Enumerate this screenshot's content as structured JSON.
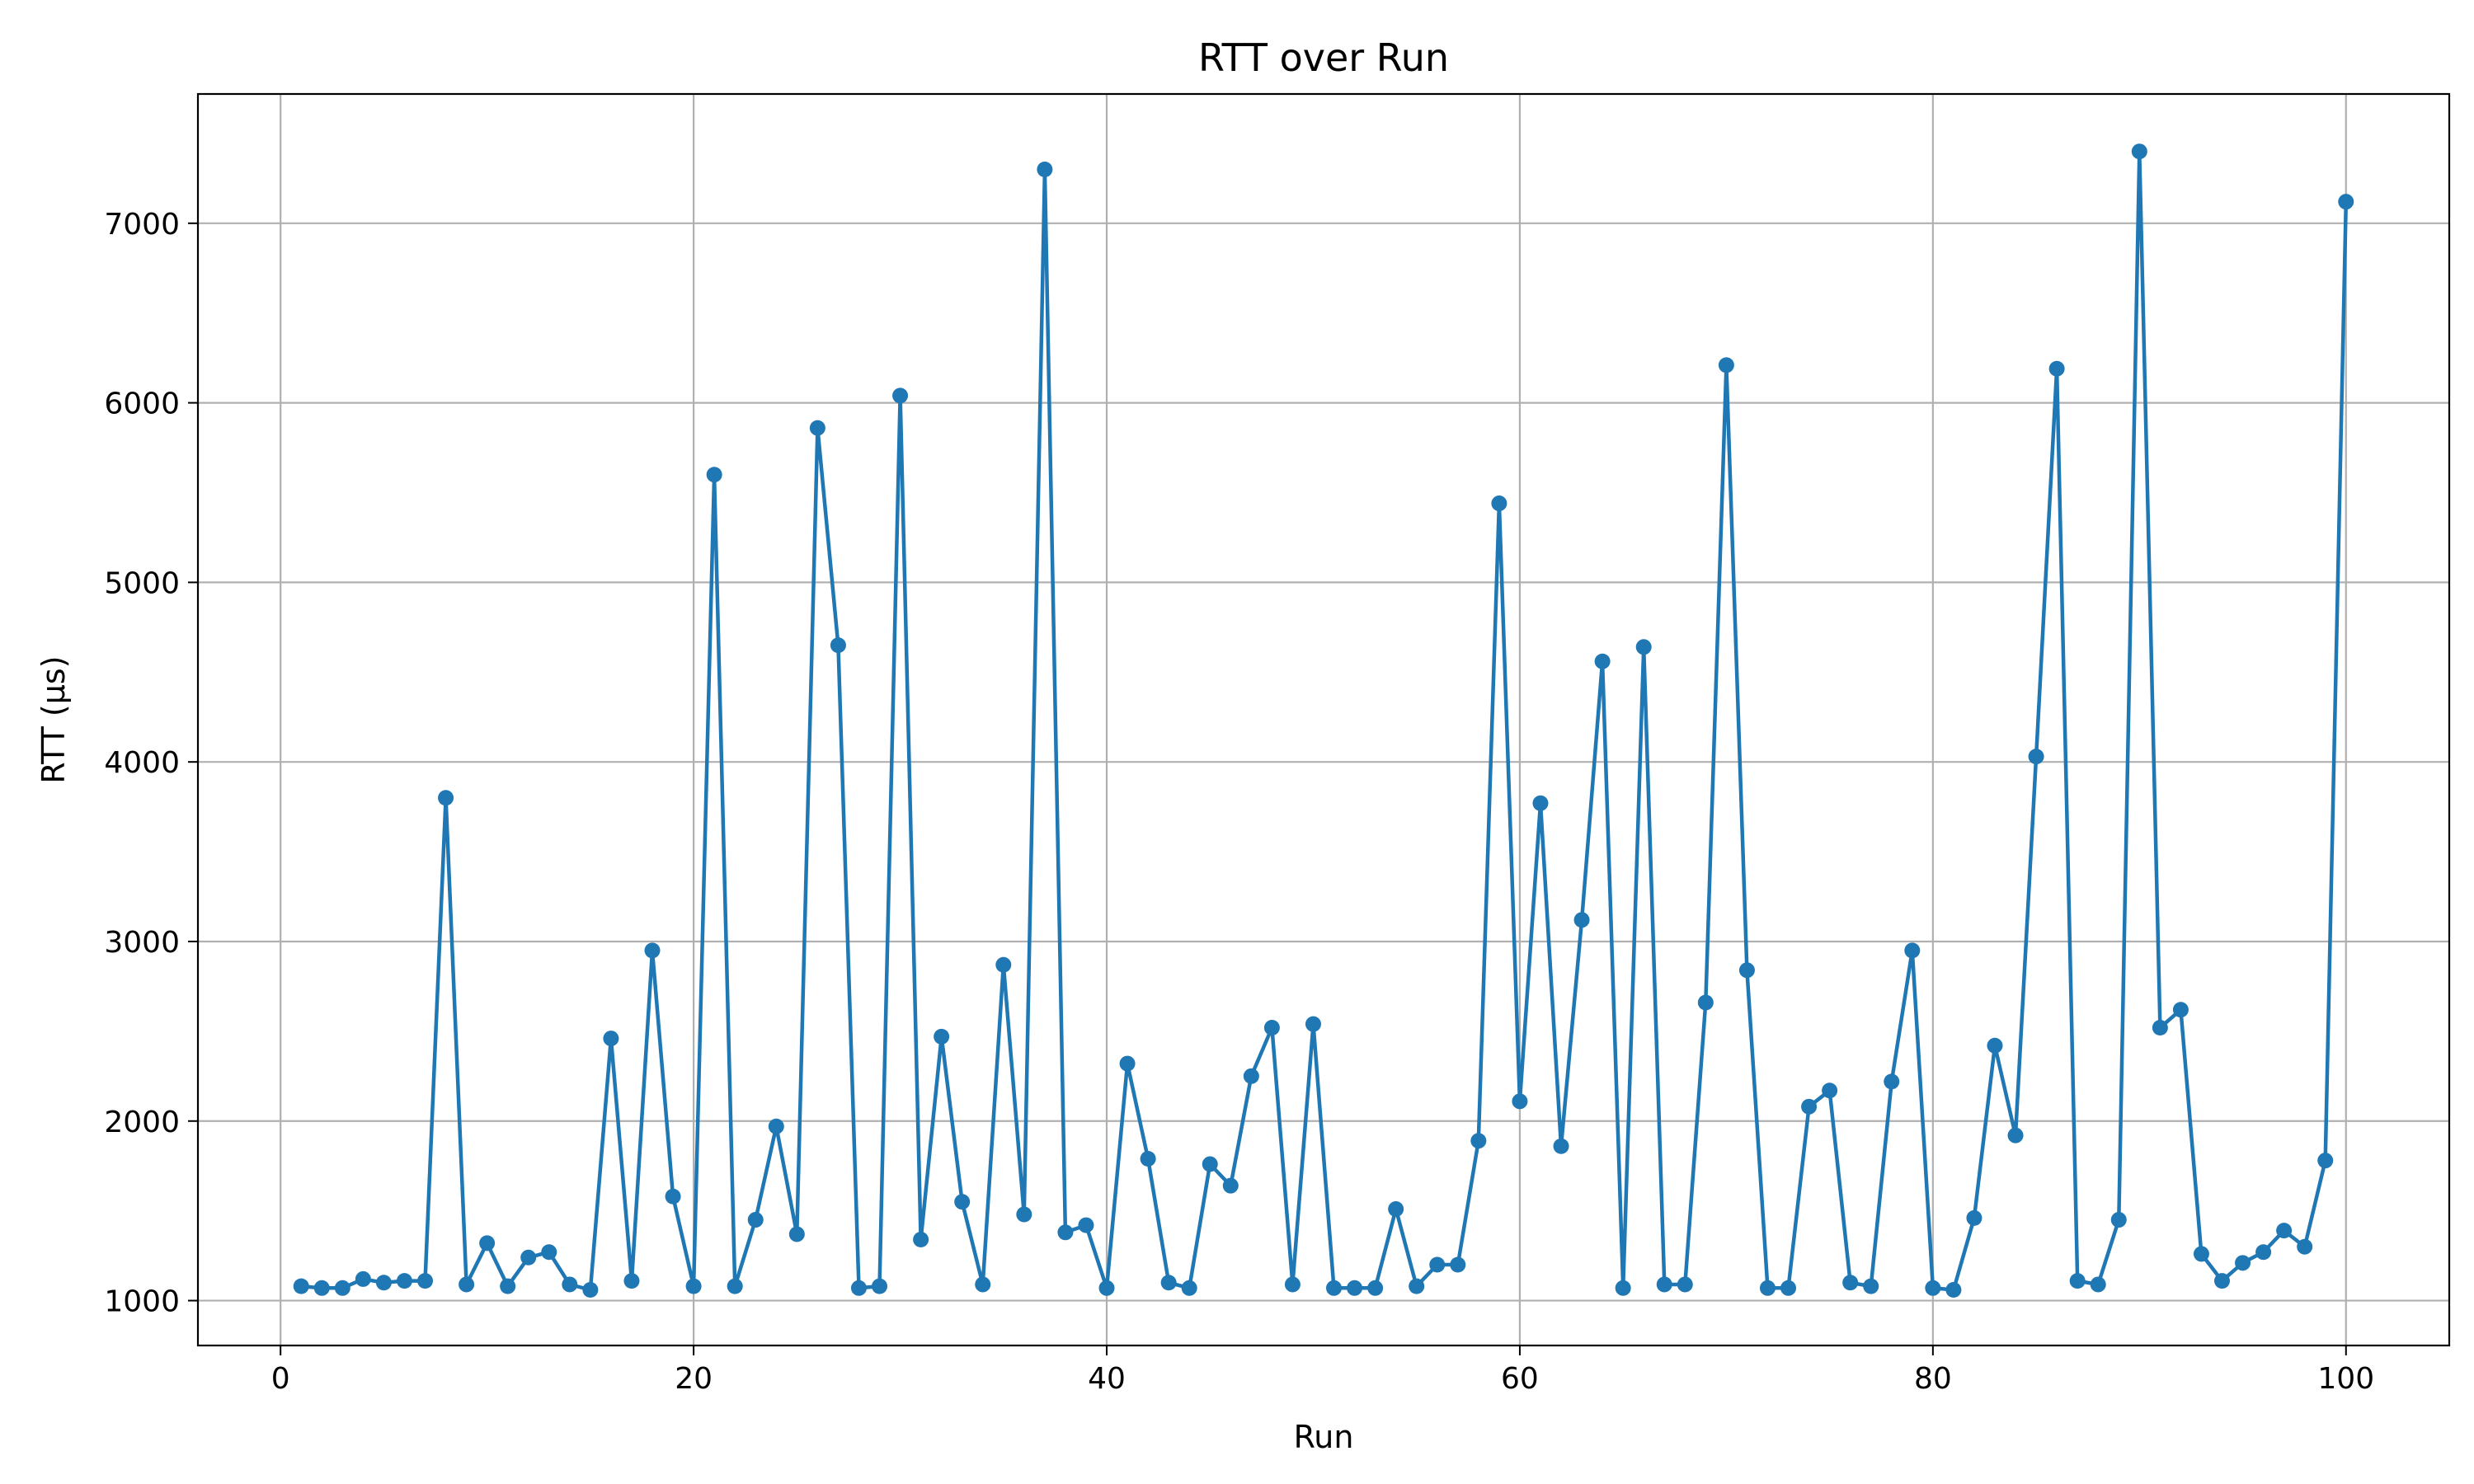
{
  "chart_data": {
    "type": "line",
    "title": "RTT over Run",
    "xlabel": "Run",
    "ylabel": "RTT (µs)",
    "xlim": [
      -4,
      105
    ],
    "ylim": [
      750,
      7720
    ],
    "xticks": [
      0,
      20,
      40,
      60,
      80,
      100
    ],
    "yticks": [
      1000,
      2000,
      3000,
      4000,
      5000,
      6000,
      7000
    ],
    "grid": true,
    "color": "#1f77b4",
    "marker": "circle",
    "x": [
      1,
      2,
      3,
      4,
      5,
      6,
      7,
      8,
      9,
      10,
      11,
      12,
      13,
      14,
      15,
      16,
      17,
      18,
      19,
      20,
      21,
      22,
      23,
      24,
      25,
      26,
      27,
      28,
      29,
      30,
      31,
      32,
      33,
      34,
      35,
      36,
      37,
      38,
      39,
      40,
      41,
      42,
      43,
      44,
      45,
      46,
      47,
      48,
      49,
      50,
      51,
      52,
      53,
      54,
      55,
      56,
      57,
      58,
      59,
      60,
      61,
      62,
      63,
      64,
      65,
      66,
      67,
      68,
      69,
      70,
      71,
      72,
      73,
      74,
      75,
      76,
      77,
      78,
      79,
      80,
      81,
      82,
      83,
      84,
      85,
      86,
      87,
      88,
      89,
      90,
      91,
      92,
      93,
      94,
      95,
      96,
      97,
      98,
      99,
      100
    ],
    "y": [
      1080,
      1070,
      1070,
      1120,
      1100,
      1110,
      1110,
      3800,
      1090,
      1320,
      1080,
      1240,
      1270,
      1090,
      1060,
      2460,
      1110,
      2950,
      1580,
      1080,
      5600,
      1080,
      1450,
      1970,
      1370,
      5860,
      4650,
      1070,
      1080,
      6040,
      1340,
      2470,
      1550,
      1090,
      2870,
      1480,
      7300,
      1380,
      1420,
      1070,
      2320,
      1790,
      1100,
      1070,
      1760,
      1640,
      2250,
      2520,
      1090,
      2540,
      1070,
      1070,
      1070,
      1510,
      1080,
      1200,
      1200,
      1890,
      5440,
      2110,
      3770,
      1860,
      3120,
      4560,
      1070,
      4640,
      1090,
      1090,
      2660,
      6210,
      2840,
      1070,
      1070,
      2080,
      2170,
      1100,
      1080,
      2220,
      2950,
      1070,
      1060,
      1460,
      2420,
      1920,
      4030,
      6190,
      1110,
      1090,
      1450,
      7400,
      2520,
      2620,
      1260,
      1110,
      1210,
      1270,
      1390,
      1300,
      1780,
      7120
    ]
  }
}
